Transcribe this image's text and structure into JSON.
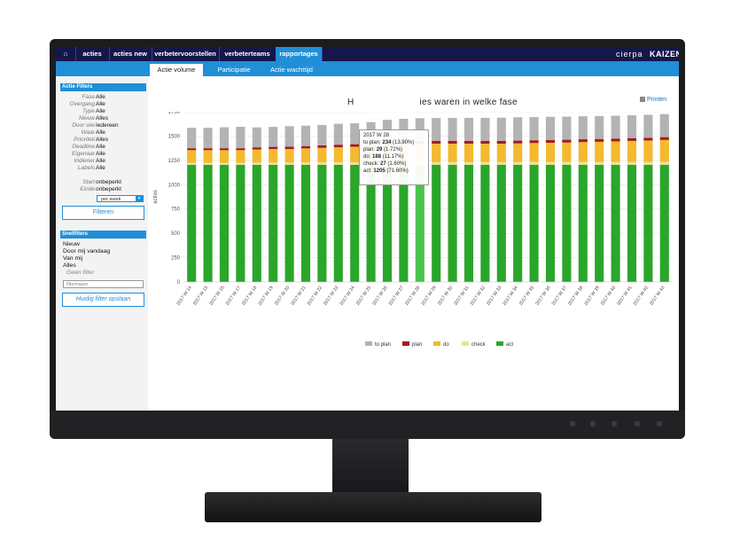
{
  "topnav": {
    "items": [
      "acties",
      "acties new",
      "verbetervoorstellen",
      "verbeterteams",
      "rapportages"
    ],
    "active_index": 4,
    "brand_primary": "cierpa",
    "brand_secondary": "KAIZEN"
  },
  "subnav": {
    "tabs": [
      "Actie volume",
      "Participatie",
      "Actie wachttijd"
    ],
    "active_index": 0
  },
  "sidebar": {
    "filters_title": "Actie Filters",
    "filters": [
      {
        "label": "Fase",
        "value": "Alle"
      },
      {
        "label": "Overgang",
        "value": "Alle"
      },
      {
        "label": "Type",
        "value": "Alle"
      },
      {
        "label": "Nieuw",
        "value": "Alles"
      },
      {
        "label": "Door wie",
        "value": "Iedereen"
      },
      {
        "label": "Waar",
        "value": "Alle"
      },
      {
        "label": "Prioriteit",
        "value": "Alles"
      },
      {
        "label": "Deadline",
        "value": "Alle"
      },
      {
        "label": "Eigenaar",
        "value": "Alle"
      },
      {
        "label": "Indiener",
        "value": "Alle"
      },
      {
        "label": "Labels",
        "value": "Alle"
      }
    ],
    "start_label": "Start",
    "start_value": "onbeperkt",
    "end_label": "Einde",
    "end_value": "onbeperkt",
    "period_select": "per week",
    "filter_button": "Filteren",
    "quick_title": "Snelfilters",
    "quick_items": [
      "Nieuw",
      "Door mij vandaag",
      "Van mij",
      "Alles"
    ],
    "no_filter": "Geen filter",
    "filter_name_placeholder": "filternaam",
    "save_button": "Huidig filter opslaan"
  },
  "content": {
    "title_left": "H",
    "title_right": "ies waren in welke fase",
    "print_label": "Printen"
  },
  "tooltip": {
    "week": "2017 W 28",
    "rows": [
      {
        "label": "to plan:",
        "value": "234",
        "pct": "(13.90%)"
      },
      {
        "label": "plan:",
        "value": "29",
        "pct": "(1.72%)"
      },
      {
        "label": "do:",
        "value": "188",
        "pct": "(11.17%)"
      },
      {
        "label": "check:",
        "value": "27",
        "pct": "(1.60%)"
      },
      {
        "label": "act:",
        "value": "1205",
        "pct": "(71.60%)"
      }
    ]
  },
  "colors": {
    "nav_bg": "#13174a",
    "accent": "#1f8fd8",
    "to_plan": "#b3b3b3",
    "plan": "#a51c1c",
    "do": "#f4b92e",
    "check": "#e8e39a",
    "act": "#2aa62a"
  },
  "chart_data": {
    "type": "bar",
    "stacked": true,
    "ylabel": "acties",
    "ylim": [
      0,
      1750
    ],
    "yticks": [
      0,
      250,
      500,
      750,
      1000,
      1250,
      1500,
      1750
    ],
    "categories": [
      "2017 W 14",
      "2017 W 15",
      "2017 W 16",
      "2017 W 17",
      "2017 W 18",
      "2017 W 19",
      "2017 W 20",
      "2017 W 21",
      "2017 W 22",
      "2017 W 23",
      "2017 W 24",
      "2017 W 25",
      "2017 W 26",
      "2017 W 27",
      "2017 W 28",
      "2017 W 29",
      "2017 W 30",
      "2017 W 31",
      "2017 W 32",
      "2017 W 33",
      "2017 W 34",
      "2017 W 35",
      "2017 W 36",
      "2017 W 37",
      "2017 W 38",
      "2017 W 39",
      "2017 W 40",
      "2017 W 41",
      "2017 W 42",
      "2017 W 43"
    ],
    "highlight_index": 14,
    "series": [
      {
        "name": "act",
        "values": [
          1205,
          1205,
          1205,
          1205,
          1205,
          1205,
          1205,
          1205,
          1205,
          1205,
          1205,
          1205,
          1205,
          1205,
          1205,
          1205,
          1205,
          1205,
          1205,
          1205,
          1205,
          1205,
          1205,
          1205,
          1205,
          1205,
          1205,
          1205,
          1205,
          1205
        ]
      },
      {
        "name": "check",
        "values": [
          20,
          20,
          20,
          20,
          22,
          22,
          22,
          23,
          24,
          25,
          25,
          26,
          26,
          27,
          27,
          27,
          27,
          27,
          27,
          27,
          27,
          28,
          28,
          28,
          28,
          28,
          28,
          29,
          29,
          30
        ]
      },
      {
        "name": "do",
        "values": [
          130,
          130,
          130,
          130,
          135,
          140,
          140,
          145,
          150,
          155,
          160,
          170,
          178,
          184,
          188,
          190,
          190,
          190,
          190,
          190,
          192,
          195,
          198,
          200,
          205,
          208,
          212,
          216,
          220,
          225
        ]
      },
      {
        "name": "plan",
        "values": [
          20,
          20,
          20,
          20,
          22,
          22,
          24,
          24,
          25,
          26,
          26,
          27,
          28,
          29,
          29,
          29,
          29,
          29,
          29,
          29,
          29,
          29,
          29,
          29,
          29,
          29,
          29,
          29,
          29,
          29
        ]
      },
      {
        "name": "to plan",
        "values": [
          210,
          210,
          215,
          220,
          205,
          205,
          210,
          210,
          210,
          215,
          215,
          215,
          230,
          232,
          234,
          234,
          235,
          236,
          236,
          238,
          240,
          238,
          238,
          238,
          236,
          236,
          235,
          234,
          235,
          237
        ]
      }
    ],
    "legend": [
      "to plan",
      "plan",
      "do",
      "check",
      "act"
    ],
    "legend_position": "bottom",
    "grid": true
  }
}
